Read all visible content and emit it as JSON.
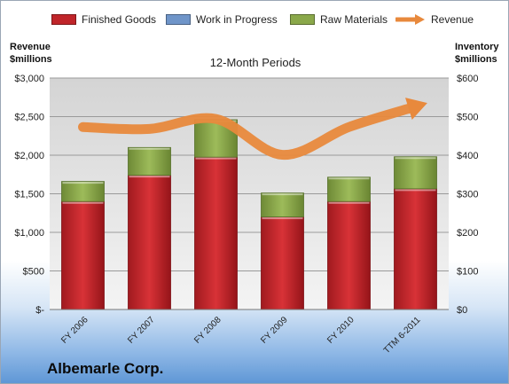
{
  "legend": {
    "finished": "Finished Goods",
    "wip": "Work in Progress",
    "raw": "Raw Materials",
    "revenue": "Revenue"
  },
  "left_axis_title": [
    "Revenue",
    "$millions"
  ],
  "right_axis_title": [
    "Inventory",
    "$millions"
  ],
  "subtitle": "12-Month Periods",
  "company": "Albemarle Corp.",
  "colors": {
    "finished": "#c0252a",
    "wip": "#6f95c9",
    "raw": "#8aa84a",
    "revenue": "#e8893c"
  },
  "chart_data": {
    "type": "bar",
    "stacked": true,
    "categories": [
      "FY 2006",
      "FY 2007",
      "FY 2008",
      "FY 2009",
      "FY 2010",
      "TTM 6-2011"
    ],
    "series": [
      {
        "name": "Finished Goods",
        "axis": "right",
        "values": [
          280,
          348,
          395,
          240,
          280,
          313
        ]
      },
      {
        "name": "Work in Progress",
        "axis": "right",
        "values": [
          0,
          0,
          0,
          0,
          0,
          0
        ]
      },
      {
        "name": "Raw Materials",
        "axis": "right",
        "values": [
          52,
          72,
          97,
          62,
          63,
          83
        ]
      },
      {
        "name": "Revenue",
        "type": "line",
        "axis": "left",
        "values": [
          2365,
          2340,
          2470,
          2005,
          2365,
          2630
        ]
      }
    ],
    "left_axis": {
      "range": [
        0,
        3000
      ],
      "ticks": [
        0,
        500,
        1000,
        1500,
        2000,
        2500,
        3000
      ],
      "tick_labels": [
        "$-",
        "$500",
        "$1,000",
        "$1,500",
        "$2,000",
        "$2,500",
        "$3,000"
      ]
    },
    "right_axis": {
      "range": [
        0,
        600
      ],
      "ticks": [
        0,
        100,
        200,
        300,
        400,
        500,
        600
      ],
      "tick_labels": [
        "$0",
        "$100",
        "$200",
        "$300",
        "$400",
        "$500",
        "$600"
      ]
    },
    "grid": true,
    "legend_position": "top"
  }
}
